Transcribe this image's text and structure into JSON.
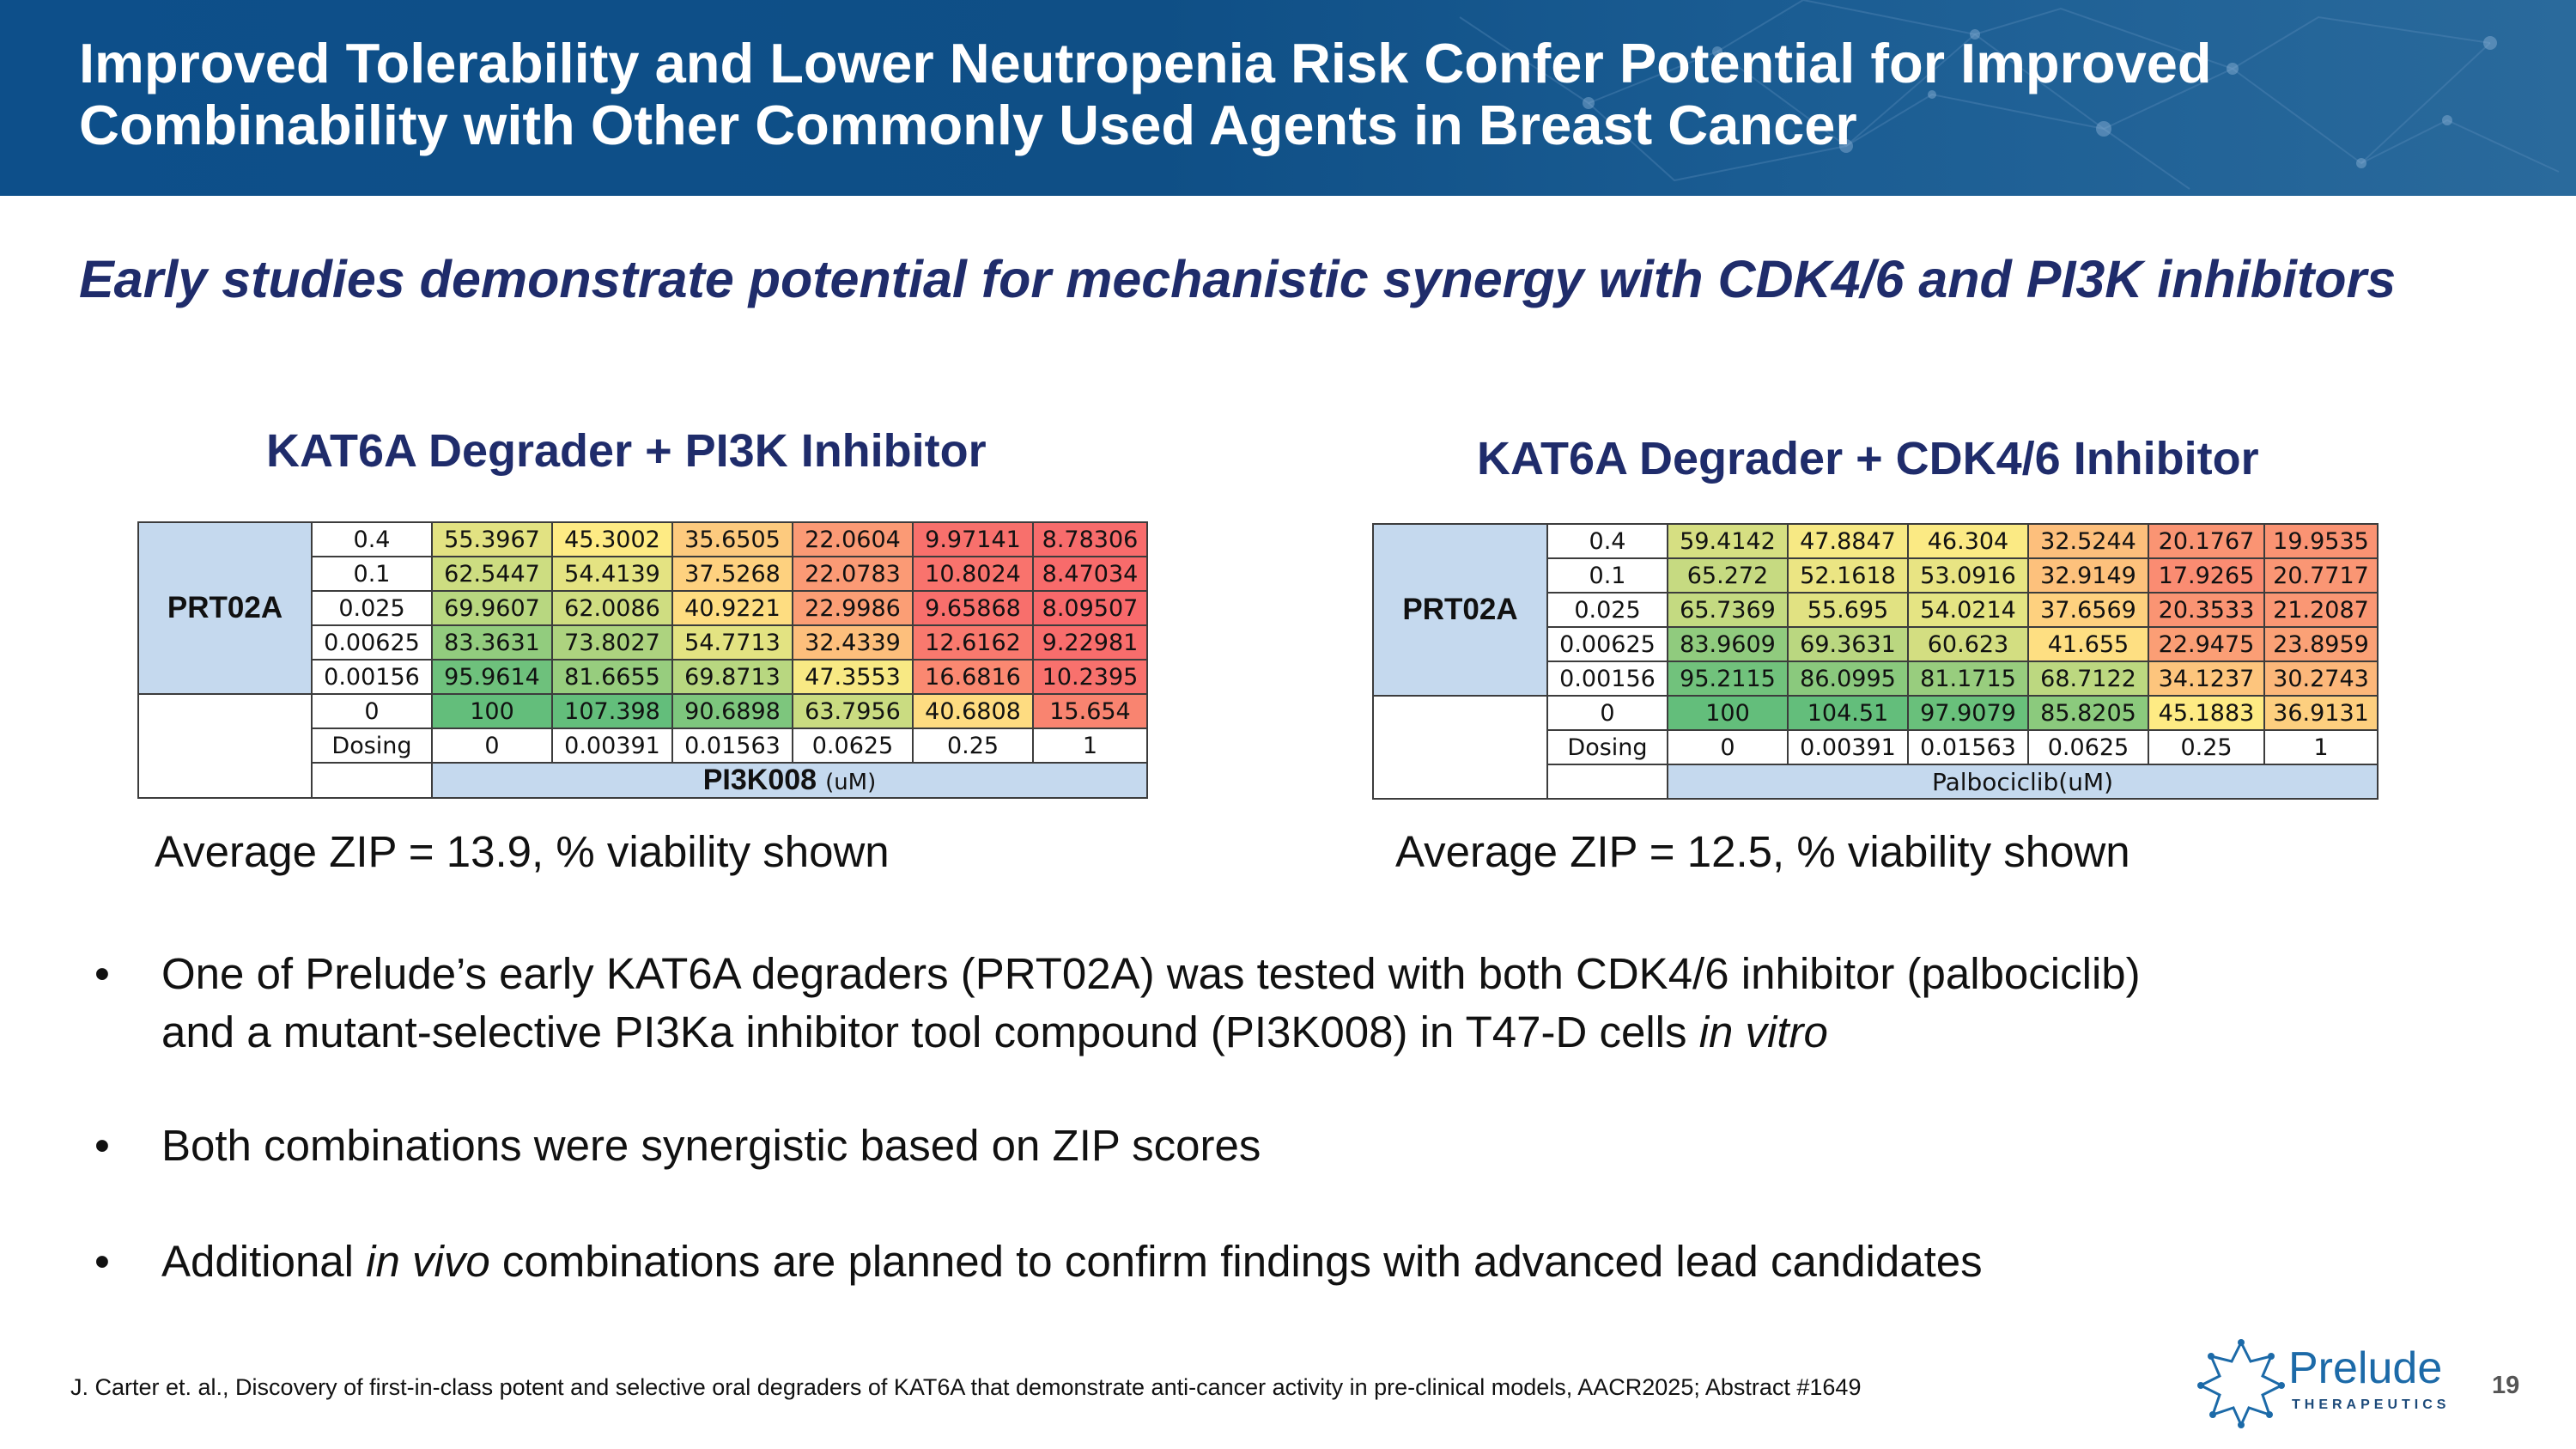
{
  "header": {
    "title_line1": "Improved Tolerability and Lower Neutropenia Risk Confer Potential for Improved",
    "title_line2": "Combinability with Other Commonly Used Agents in Breast Cancer"
  },
  "subtitle": "Early studies demonstrate potential for mechanistic synergy with CDK4/6 and PI3K inhibitors",
  "left_panel": {
    "title": "KAT6A Degrader + PI3K Inhibitor",
    "row_label": "PRT02A",
    "rows": [
      {
        "dose": "0.4",
        "values": [
          "55.3967",
          "45.3002",
          "35.6505",
          "22.0604",
          "9.97141",
          "8.78306"
        ]
      },
      {
        "dose": "0.1",
        "values": [
          "62.5447",
          "54.4139",
          "37.5268",
          "22.0783",
          "10.8024",
          "8.47034"
        ]
      },
      {
        "dose": "0.025",
        "values": [
          "69.9607",
          "62.0086",
          "40.9221",
          "22.9986",
          "9.65868",
          "8.09507"
        ]
      },
      {
        "dose": "0.00625",
        "values": [
          "83.3631",
          "73.8027",
          "54.7713",
          "32.4339",
          "12.6162",
          "9.22981"
        ]
      },
      {
        "dose": "0.00156",
        "values": [
          "95.9614",
          "81.6655",
          "69.8713",
          "47.3553",
          "16.6816",
          "10.2395"
        ]
      },
      {
        "dose": "0",
        "values": [
          "100",
          "107.398",
          "90.6898",
          "63.7956",
          "40.6808",
          "15.654"
        ]
      }
    ],
    "dosing_label": "Dosing",
    "dosing": [
      "0",
      "0.00391",
      "0.01563",
      "0.0625",
      "0.25",
      "1"
    ],
    "axis_label": "PI3K008",
    "axis_unit": "(uM)",
    "zip_text": "Average ZIP = 13.9, % viability shown"
  },
  "right_panel": {
    "title": "KAT6A Degrader + CDK4/6 Inhibitor",
    "row_label": "PRT02A",
    "rows": [
      {
        "dose": "0.4",
        "values": [
          "59.4142",
          "47.8847",
          "46.304",
          "32.5244",
          "20.1767",
          "19.9535"
        ]
      },
      {
        "dose": "0.1",
        "values": [
          "65.272",
          "52.1618",
          "53.0916",
          "32.9149",
          "17.9265",
          "20.7717"
        ]
      },
      {
        "dose": "0.025",
        "values": [
          "65.7369",
          "55.695",
          "54.0214",
          "37.6569",
          "20.3533",
          "21.2087"
        ]
      },
      {
        "dose": "0.00625",
        "values": [
          "83.9609",
          "69.3631",
          "60.623",
          "41.655",
          "22.9475",
          "23.8959"
        ]
      },
      {
        "dose": "0.00156",
        "values": [
          "95.2115",
          "86.0995",
          "81.1715",
          "68.7122",
          "34.1237",
          "30.2743"
        ]
      },
      {
        "dose": "0",
        "values": [
          "100",
          "104.51",
          "97.9079",
          "85.8205",
          "45.1883",
          "36.9131"
        ]
      }
    ],
    "dosing_label": "Dosing",
    "dosing": [
      "0",
      "0.00391",
      "0.01563",
      "0.0625",
      "0.25",
      "1"
    ],
    "axis_label": "Palbociclib(uM)",
    "zip_text": "Average ZIP = 12.5, % viability shown"
  },
  "bullets": {
    "b1_line1": "One of Prelude’s early KAT6A degraders (PRT02A) was tested with both CDK4/6 inhibitor (palbociclib)",
    "b1_line2_pre": "and a mutant-selective PI3Ka inhibitor tool compound (PI3K008) in T47-D cells ",
    "b1_line2_em": "in vitro",
    "b2": "Both combinations were synergistic based on ZIP scores",
    "b3_pre": "Additional ",
    "b3_em": "in vivo",
    "b3_post": " combinations are planned to confirm findings with advanced lead candidates",
    "bullet_char": "•"
  },
  "footnote": "J. Carter et. al., Discovery of first-in-class potent and selective oral degraders of KAT6A that demonstrate anti-cancer activity in pre-clinical models, AACR2025; Abstract #1649",
  "logo": {
    "name": "Prelude",
    "tagline": "THERAPEUTICS"
  },
  "page_number": "19",
  "colors": {
    "header_bg": "#0d4f8a",
    "title_navy": "#1f2c6b",
    "label_blue": "#c5d9ee",
    "heat_green": "#63be7b",
    "heat_yellow": "#ffeb84",
    "heat_red": "#f8696b"
  }
}
